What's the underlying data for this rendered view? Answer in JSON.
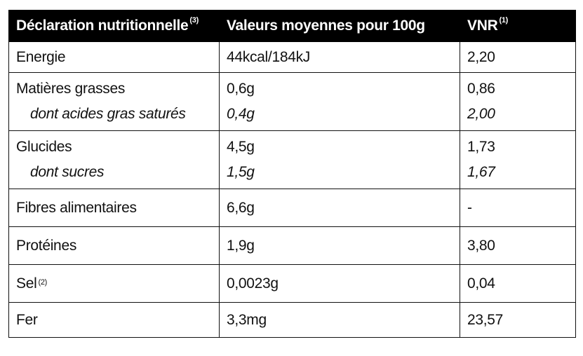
{
  "header": [
    {
      "text": "Déclaration nutritionnelle",
      "sup": "(3)"
    },
    {
      "text": "Valeurs moyennes pour 100g"
    },
    {
      "text": "VNR",
      "sup": "(1)"
    }
  ],
  "rows": [
    [
      {
        "label": "Energie",
        "value": "44kcal/184kJ",
        "vnr": "2,20"
      }
    ],
    [
      {
        "label": "Matières grasses",
        "value": "0,6g",
        "vnr": "0,86"
      },
      {
        "label": "dont acides gras saturés",
        "value": "0,4g",
        "vnr": "2,00"
      }
    ],
    [
      {
        "label": "Glucides",
        "value": "4,5g",
        "vnr": "1,73"
      },
      {
        "label": "dont sucres",
        "value": "1,5g",
        "vnr": "1,67"
      }
    ],
    [
      {
        "label": "Fibres alimentaires",
        "value": "6,6g",
        "vnr": "-"
      }
    ],
    [
      {
        "label": "Protéines",
        "value": "1,9g",
        "vnr": "3,80"
      }
    ],
    [
      {
        "label": "Sel",
        "sup": "(2)",
        "value": "0,0023g",
        "vnr": "0,04"
      }
    ],
    [
      {
        "label": "Fer",
        "value": "3,3mg",
        "vnr": "23,57"
      }
    ]
  ]
}
